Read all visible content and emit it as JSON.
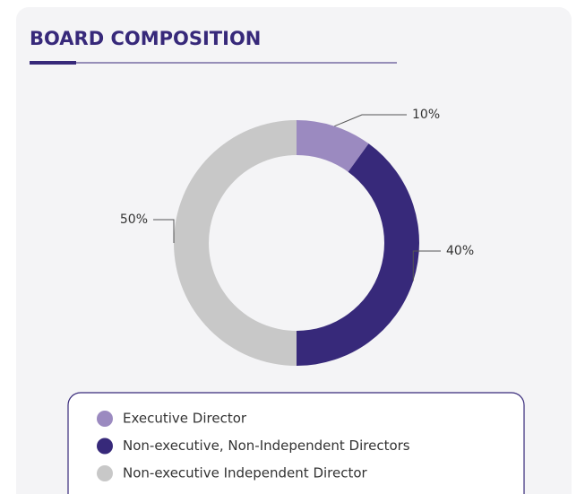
{
  "chart_data": {
    "type": "donut",
    "title": "BOARD COMPOSITION",
    "categories": [
      "Executive Director",
      "Non-executive, Non-Independent Directors",
      "Non-executive Independent Director"
    ],
    "values": [
      10,
      40,
      50
    ],
    "value_labels": [
      "10%",
      "40%",
      "50%"
    ],
    "colors": [
      "#9b8ac0",
      "#37297a",
      "#c8c8c8"
    ]
  }
}
